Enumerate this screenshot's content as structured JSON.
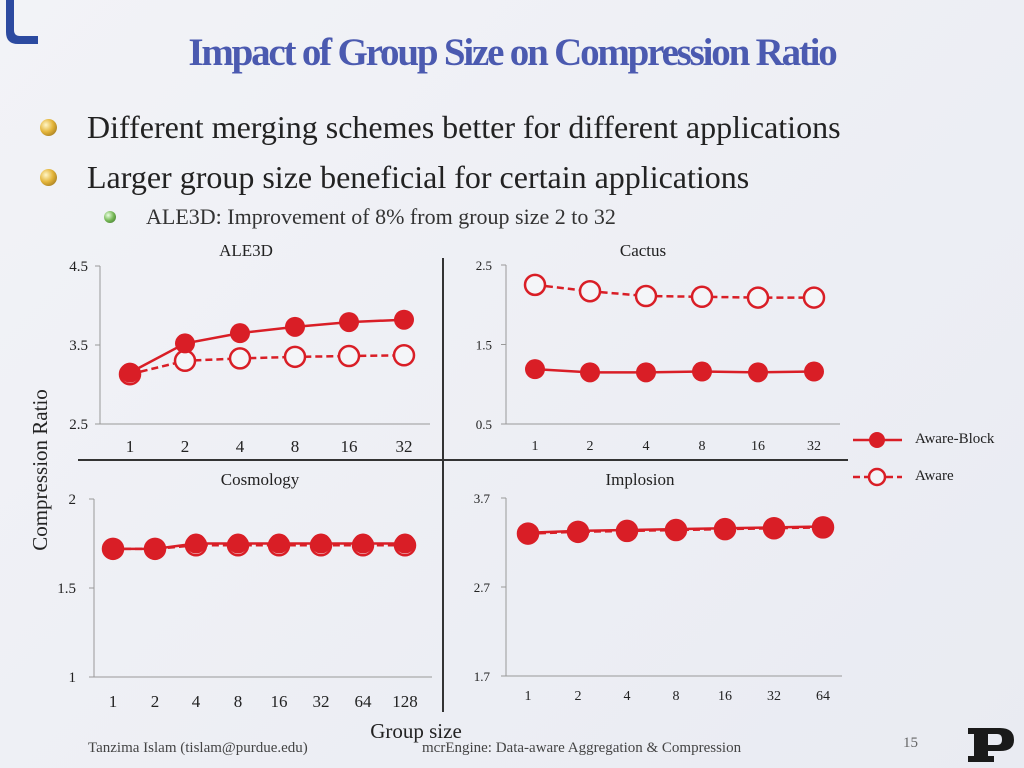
{
  "slide": {
    "title": "Impact of Group Size on Compression Ratio",
    "bullets": [
      "Different merging schemes better for different applications",
      "Larger group size beneficial for certain applications"
    ],
    "sub_bullet": "ALE3D: Improvement of 8% from group size 2 to 32",
    "y_axis_label": "Compression Ratio",
    "x_axis_label": "Group size",
    "footer_author": "Tanzima Islam (tislam@purdue.edu)",
    "footer_title": "mcrEngine: Data-aware Aggregation & Compression",
    "page_number": "15",
    "colors": {
      "title": "#4b5ab0",
      "series": "#d91e26"
    }
  },
  "chart_data": [
    {
      "type": "line",
      "title": "ALE3D",
      "categories": [
        "1",
        "2",
        "4",
        "8",
        "16",
        "32"
      ],
      "ylim": [
        2.5,
        4.5
      ],
      "yticks": [
        "2.5",
        "3.5",
        "4.5"
      ],
      "series": [
        {
          "name": "Aware-Block",
          "values": [
            3.15,
            3.52,
            3.65,
            3.73,
            3.79,
            3.82
          ]
        },
        {
          "name": "Aware",
          "values": [
            3.13,
            3.3,
            3.33,
            3.35,
            3.36,
            3.37
          ]
        }
      ]
    },
    {
      "type": "line",
      "title": "Cactus",
      "categories": [
        "1",
        "2",
        "4",
        "8",
        "16",
        "32"
      ],
      "ylim": [
        0.5,
        2.5
      ],
      "yticks": [
        "0.5",
        "1.5",
        "2.5"
      ],
      "series": [
        {
          "name": "Aware-Block",
          "values": [
            1.19,
            1.15,
            1.15,
            1.16,
            1.15,
            1.16
          ]
        },
        {
          "name": "Aware",
          "values": [
            2.25,
            2.17,
            2.11,
            2.1,
            2.09,
            2.09
          ]
        }
      ]
    },
    {
      "type": "line",
      "title": "Cosmology",
      "categories": [
        "1",
        "2",
        "4",
        "8",
        "16",
        "32",
        "64",
        "128"
      ],
      "ylim": [
        1,
        2
      ],
      "yticks": [
        "1",
        "1.5",
        "2"
      ],
      "series": [
        {
          "name": "Aware-Block",
          "values": [
            1.72,
            1.72,
            1.75,
            1.75,
            1.75,
            1.75,
            1.75,
            1.75
          ]
        },
        {
          "name": "Aware",
          "values": [
            1.72,
            1.72,
            1.74,
            1.74,
            1.74,
            1.74,
            1.74,
            1.74
          ]
        }
      ]
    },
    {
      "type": "line",
      "title": "Implosion",
      "categories": [
        "1",
        "2",
        "4",
        "8",
        "16",
        "32",
        "64"
      ],
      "ylim": [
        1.7,
        3.7
      ],
      "yticks": [
        "1.7",
        "2.7",
        "3.7"
      ],
      "series": [
        {
          "name": "Aware-Block",
          "values": [
            3.31,
            3.33,
            3.34,
            3.35,
            3.36,
            3.37,
            3.38
          ]
        },
        {
          "name": "Aware",
          "values": [
            3.3,
            3.32,
            3.33,
            3.34,
            3.35,
            3.36,
            3.37
          ]
        }
      ]
    }
  ],
  "legend": [
    {
      "label": "Aware-Block",
      "style": "solid-filled"
    },
    {
      "label": "Aware",
      "style": "dashed-hollow"
    }
  ]
}
